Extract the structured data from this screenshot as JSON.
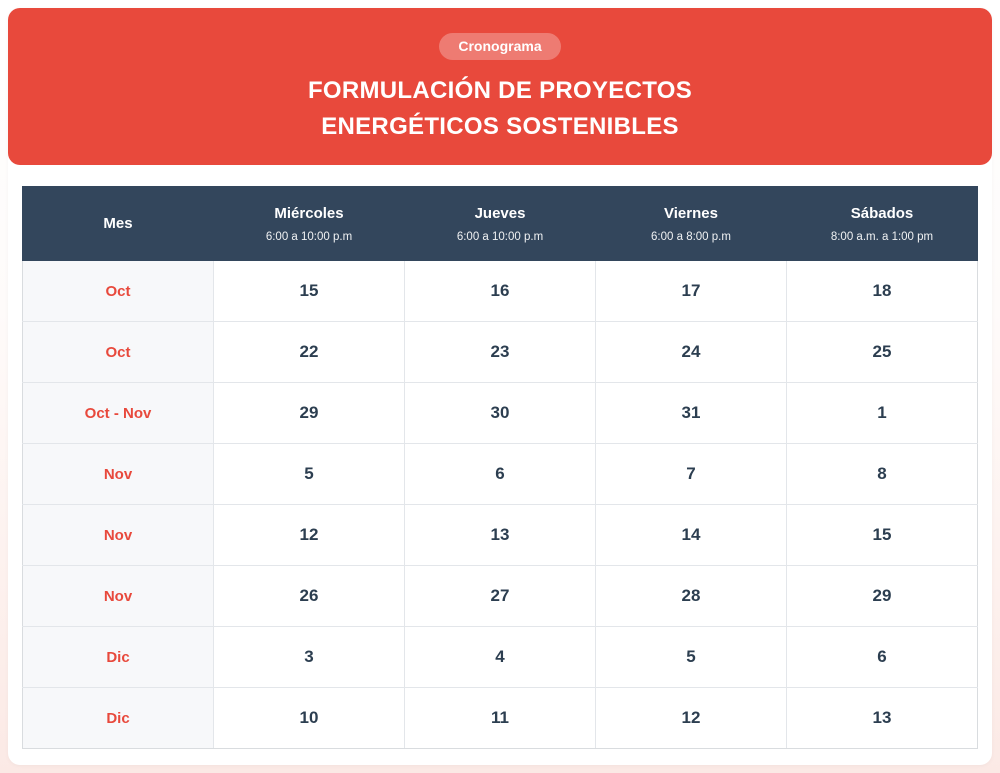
{
  "banner": {
    "badge": "Cronograma",
    "title_line1": "FORMULACIÓN DE PROYECTOS",
    "title_line2": "ENERGÉTICOS SOSTENIBLES"
  },
  "colors": {
    "banner_bg": "#E8493C",
    "badge_bg": "#EE7E72",
    "header_bg": "#33465C",
    "month_text": "#E8493C",
    "date_text": "#2C3E50",
    "month_col_bg": "#F7F8FA"
  },
  "table": {
    "columns": [
      {
        "label": "Mes",
        "time": ""
      },
      {
        "label": "Miércoles",
        "time": "6:00 a 10:00 p.m"
      },
      {
        "label": "Jueves",
        "time": "6:00 a 10:00 p.m"
      },
      {
        "label": "Viernes",
        "time": "6:00 a 8:00 p.m"
      },
      {
        "label": "Sábados",
        "time": "8:00 a.m. a 1:00 pm"
      }
    ],
    "rows": [
      {
        "month": "Oct",
        "dates": [
          "15",
          "16",
          "17",
          "18"
        ]
      },
      {
        "month": "Oct",
        "dates": [
          "22",
          "23",
          "24",
          "25"
        ]
      },
      {
        "month": "Oct - Nov",
        "dates": [
          "29",
          "30",
          "31",
          "1"
        ]
      },
      {
        "month": "Nov",
        "dates": [
          "5",
          "6",
          "7",
          "8"
        ]
      },
      {
        "month": "Nov",
        "dates": [
          "12",
          "13",
          "14",
          "15"
        ]
      },
      {
        "month": "Nov",
        "dates": [
          "26",
          "27",
          "28",
          "29"
        ]
      },
      {
        "month": "Dic",
        "dates": [
          "3",
          "4",
          "5",
          "6"
        ]
      },
      {
        "month": "Dic",
        "dates": [
          "10",
          "11",
          "12",
          "13"
        ]
      }
    ]
  }
}
